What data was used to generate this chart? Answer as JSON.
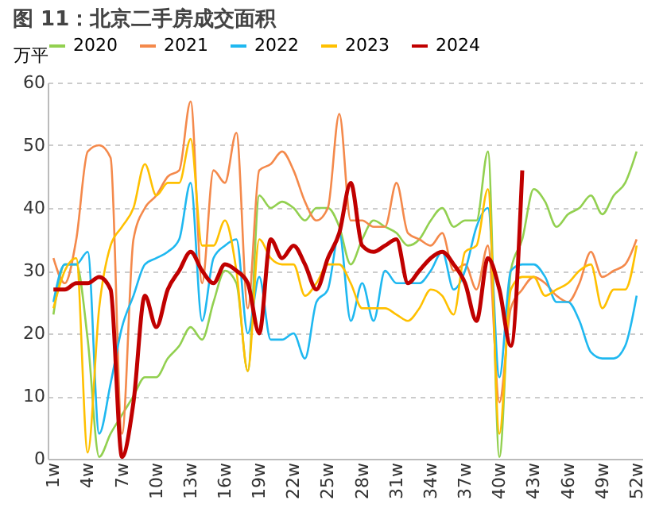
{
  "chart_data": {
    "type": "line",
    "title": "图 11：北京二手房成交面积",
    "ylabel": "万平",
    "categories": [
      "1w",
      null,
      null,
      "4w",
      null,
      null,
      "7w",
      null,
      null,
      "10w",
      null,
      null,
      "13w",
      null,
      null,
      "16w",
      null,
      null,
      "19w",
      null,
      null,
      "22w",
      null,
      null,
      "25w",
      null,
      null,
      "28w",
      null,
      null,
      "31w",
      null,
      null,
      "34w",
      null,
      null,
      "37w",
      null,
      null,
      "40w",
      null,
      null,
      "43w",
      null,
      null,
      "46w",
      null,
      null,
      "49w",
      null,
      null,
      "52w"
    ],
    "series": [
      {
        "name": "2020",
        "color": "#92d050",
        "values": [
          23,
          31,
          31,
          19,
          0.3,
          4,
          7,
          10,
          13,
          13,
          16,
          18,
          21,
          19,
          25,
          30,
          28,
          14,
          42,
          40,
          41,
          40,
          38,
          40,
          40,
          37,
          31,
          35,
          38,
          37,
          36,
          34,
          35,
          38,
          40,
          37,
          38,
          38,
          49,
          0.3,
          30,
          35,
          43,
          41,
          37,
          39,
          40,
          42,
          39,
          42,
          44,
          49
        ]
      },
      {
        "name": "2021",
        "color": "#f4894b",
        "values": [
          32,
          28,
          35,
          49,
          50,
          48,
          4,
          35,
          40,
          42,
          45,
          46,
          57,
          28,
          46,
          44,
          52,
          24,
          46,
          47,
          49,
          46,
          41,
          38,
          40,
          55,
          38,
          38,
          37,
          37,
          44,
          36,
          35,
          34,
          36,
          30,
          31,
          27,
          34,
          9,
          24,
          27,
          29,
          28,
          26,
          25,
          28,
          33,
          29,
          30,
          31,
          35
        ]
      },
      {
        "name": "2022",
        "color": "#1fb8f0",
        "values": [
          25,
          31,
          31,
          33,
          4,
          12,
          21,
          26,
          31,
          32,
          33,
          35,
          44,
          22,
          32,
          34,
          35,
          20,
          29,
          19,
          19,
          20,
          16,
          25,
          27,
          36,
          22,
          28,
          22,
          30,
          28,
          28,
          28,
          30,
          33,
          27,
          30,
          37,
          40,
          13,
          30,
          31,
          31,
          29,
          25,
          25,
          22,
          17,
          16,
          16,
          18,
          26
        ]
      },
      {
        "name": "2023",
        "color": "#ffc000",
        "values": [
          24,
          30,
          32,
          1,
          24,
          34,
          37,
          40,
          47,
          42,
          44,
          44,
          51,
          34,
          34,
          38,
          30,
          14,
          35,
          32,
          31,
          31,
          26,
          28,
          31,
          31,
          28,
          24,
          24,
          24,
          23,
          22,
          24,
          27,
          26,
          23,
          33,
          34,
          43,
          4,
          27,
          29,
          29,
          26,
          27,
          28,
          30,
          31,
          24,
          27,
          27,
          34
        ]
      },
      {
        "name": "2024",
        "color": "#c00000",
        "values": [
          27,
          27,
          28,
          28,
          29,
          27,
          0.3,
          9,
          26,
          21,
          27,
          30,
          33,
          30,
          28,
          31,
          30,
          28,
          20,
          35,
          32,
          34,
          31,
          27,
          32,
          36,
          44,
          34,
          33,
          34,
          35,
          28,
          30,
          32,
          33,
          31,
          28,
          22,
          32,
          27,
          18,
          46,
          null,
          null,
          null,
          null,
          null,
          null,
          null,
          null,
          null,
          null
        ]
      }
    ],
    "ylim": [
      0,
      60
    ],
    "yticks": [
      0,
      10,
      20,
      30,
      40,
      50,
      60
    ],
    "grid": "y",
    "legend": "top",
    "marker": "none",
    "line_style": "solid"
  }
}
